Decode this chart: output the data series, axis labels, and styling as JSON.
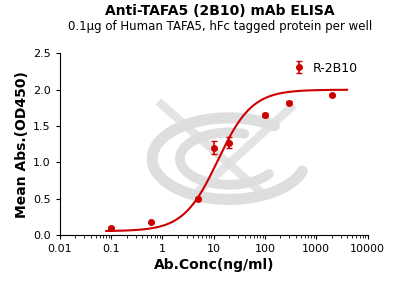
{
  "title": "Anti-TAFA5 (2B10) mAb ELISA",
  "subtitle": "0.1µg of Human TAFA5, hFc tagged protein per well",
  "xlabel": "Ab.Conc(ng/ml)",
  "ylabel": "Mean Abs.(OD450)",
  "legend_label": "R-2B10",
  "line_color": "#cc0000",
  "x_data": [
    0.1,
    0.6,
    5,
    10,
    20,
    100,
    300,
    2000
  ],
  "y_data": [
    0.1,
    0.17,
    0.5,
    1.2,
    1.27,
    1.65,
    1.82,
    1.93
  ],
  "y_err": [
    0.005,
    0.005,
    0.015,
    0.09,
    0.08,
    0.03,
    0.02,
    0.015
  ],
  "xlim": [
    0.01,
    10000
  ],
  "ylim": [
    0.0,
    2.5
  ],
  "yticks": [
    0.0,
    0.5,
    1.0,
    1.5,
    2.0,
    2.5
  ],
  "xtick_labels": [
    "0.01",
    "0.1",
    "1",
    "10",
    "100",
    "1000",
    "10000"
  ],
  "xtick_vals": [
    0.01,
    0.1,
    1,
    10,
    100,
    1000,
    10000
  ],
  "watermark_color": "#dedede",
  "background_color": "#ffffff",
  "title_fontsize": 10,
  "subtitle_fontsize": 8.5,
  "axis_label_fontsize": 10,
  "tick_fontsize": 8,
  "legend_fontsize": 9
}
